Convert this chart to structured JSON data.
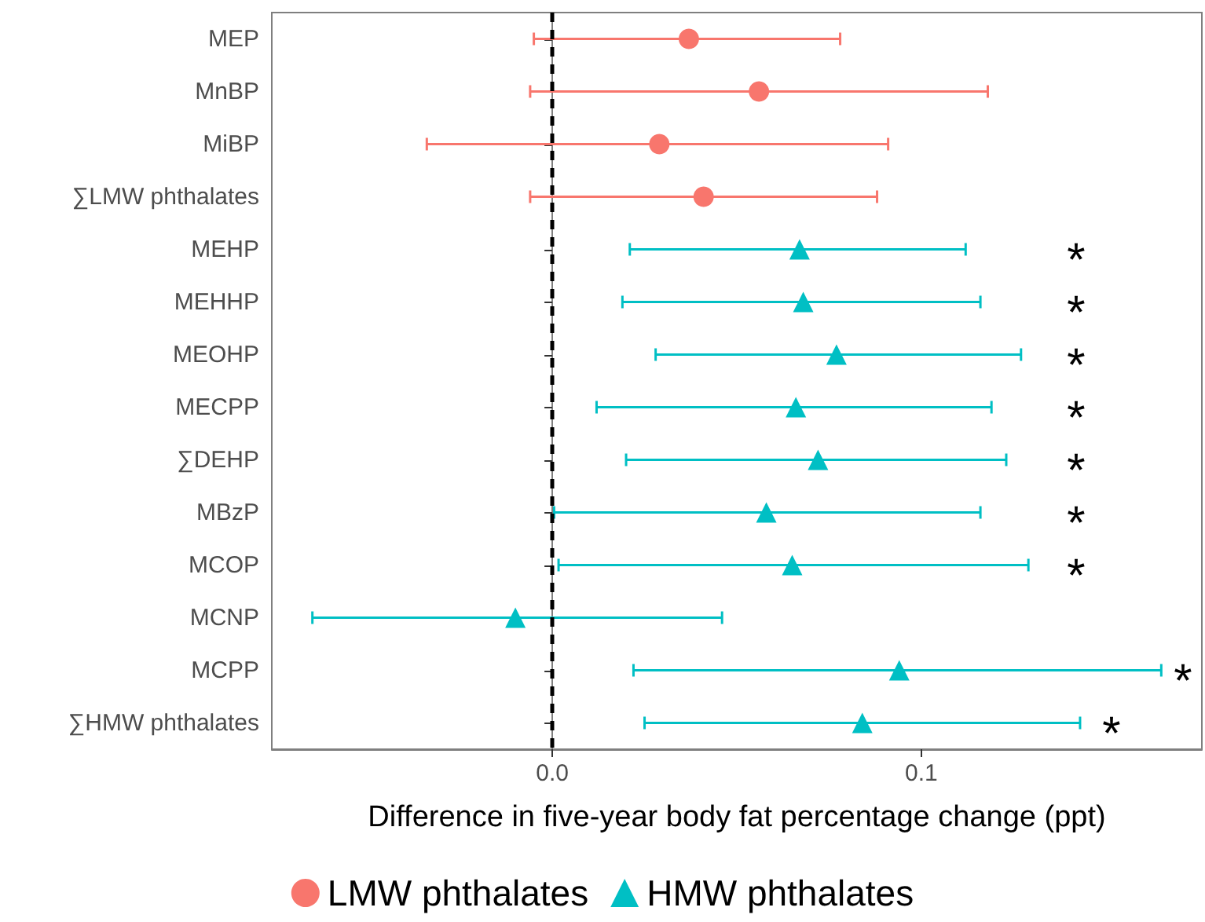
{
  "chart_data": {
    "type": "scatter",
    "orientation": "horizontal",
    "xlabel": "Difference in five-year body fat percentage change (ppt)",
    "categories": [
      "MEP",
      "MnBP",
      "MiBP",
      "∑LMW phthalates",
      "MEHP",
      "MEHHP",
      "MEOHP",
      "MECPP",
      "∑DEHP",
      "MBzP",
      "MCOP",
      "MCNP",
      "MCPP",
      "∑HMW phthalates"
    ],
    "series": [
      {
        "name": "LMW phthalates",
        "color": "#f8766d",
        "marker": "circle",
        "values": [
          0.037,
          0.056,
          0.029,
          0.041,
          null,
          null,
          null,
          null,
          null,
          null,
          null,
          null,
          null,
          null
        ],
        "errors": [
          [
            -0.005,
            0.078
          ],
          [
            -0.006,
            0.118
          ],
          [
            -0.034,
            0.091
          ],
          [
            -0.006,
            0.088
          ],
          null,
          null,
          null,
          null,
          null,
          null,
          null,
          null,
          null,
          null
        ]
      },
      {
        "name": "HMW phthalates",
        "color": "#00bfc4",
        "marker": "triangle",
        "values": [
          null,
          null,
          null,
          null,
          0.067,
          0.068,
          0.077,
          0.066,
          0.072,
          0.058,
          0.065,
          -0.01,
          0.094,
          0.084
        ],
        "errors": [
          null,
          null,
          null,
          null,
          [
            0.021,
            0.112
          ],
          [
            0.019,
            0.116
          ],
          [
            0.028,
            0.127
          ],
          [
            0.012,
            0.119
          ],
          [
            0.02,
            0.123
          ],
          [
            0.0005,
            0.116
          ],
          [
            0.0017,
            0.129
          ],
          [
            -0.065,
            0.046
          ],
          [
            0.022,
            0.165
          ],
          [
            0.025,
            0.143
          ]
        ]
      }
    ],
    "xlim": [
      -0.076,
      0.176
    ],
    "xticks": [
      {
        "value": 0,
        "label": "0.0"
      },
      0.1
    ],
    "ref_lines": [
      {
        "axis": "x",
        "value": 0,
        "color": "#000000",
        "line_style": "dashed"
      }
    ],
    "annotations": [
      "*",
      "*",
      "*",
      "*",
      "*",
      "*",
      "*",
      "*",
      "*"
    ],
    "grid": false,
    "legend": "bottom"
  }
}
